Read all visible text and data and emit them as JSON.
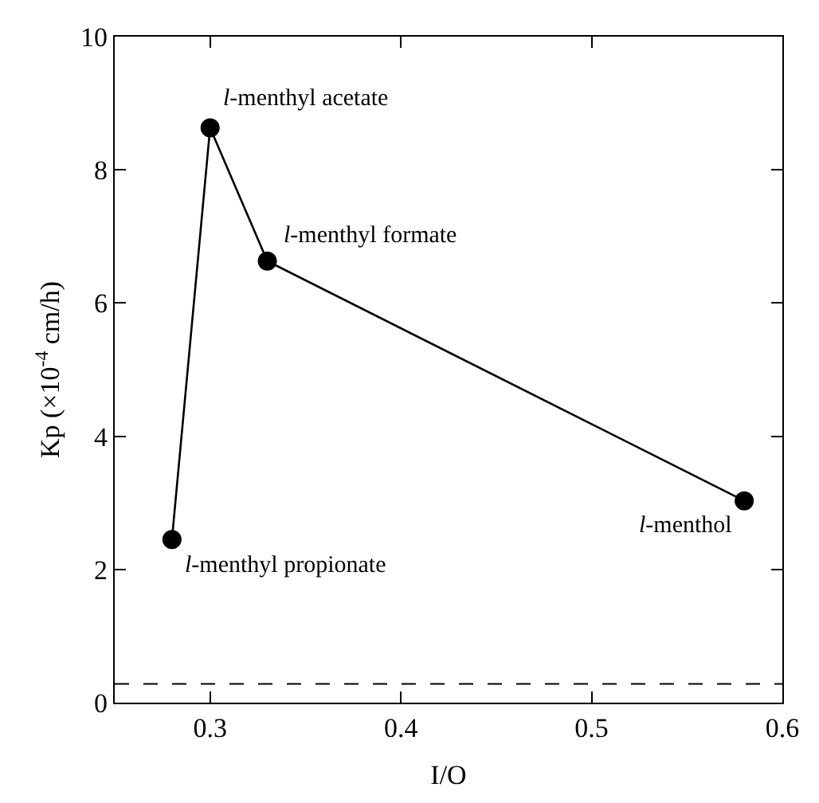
{
  "chart_data": {
    "type": "line",
    "xlabel": "I/O",
    "ylabel": "Kp (×10$^{-4}$ cm/h)",
    "x": [
      0.28,
      0.3,
      0.33,
      0.58
    ],
    "series": [
      {
        "color": "#000000",
        "values": [
          2.45,
          8.63,
          6.63,
          3.03
        ]
      }
    ],
    "marker": "circle",
    "line_style": "solid",
    "xlim": [
      0.25,
      0.6
    ],
    "xticks": [
      0.3,
      0.4,
      0.5,
      0.6
    ],
    "ylim": [
      0,
      10
    ],
    "yticks": [
      0,
      2,
      4,
      6,
      8,
      10
    ],
    "ref_lines": [
      {
        "axis": "y",
        "value": 0.28,
        "line_style": "dashed",
        "color": "#000000"
      }
    ],
    "annotations": [
      {
        "text": "l-menthyl propionate",
        "x": 0.28,
        "y": 2.45
      },
      {
        "text": "l-menthyl acetate",
        "x": 0.3,
        "y": 8.63
      },
      {
        "text": "l-menthyl formate",
        "x": 0.33,
        "y": 6.63
      },
      {
        "text": "l-menthol",
        "x": 0.58,
        "y": 3.03
      }
    ]
  }
}
